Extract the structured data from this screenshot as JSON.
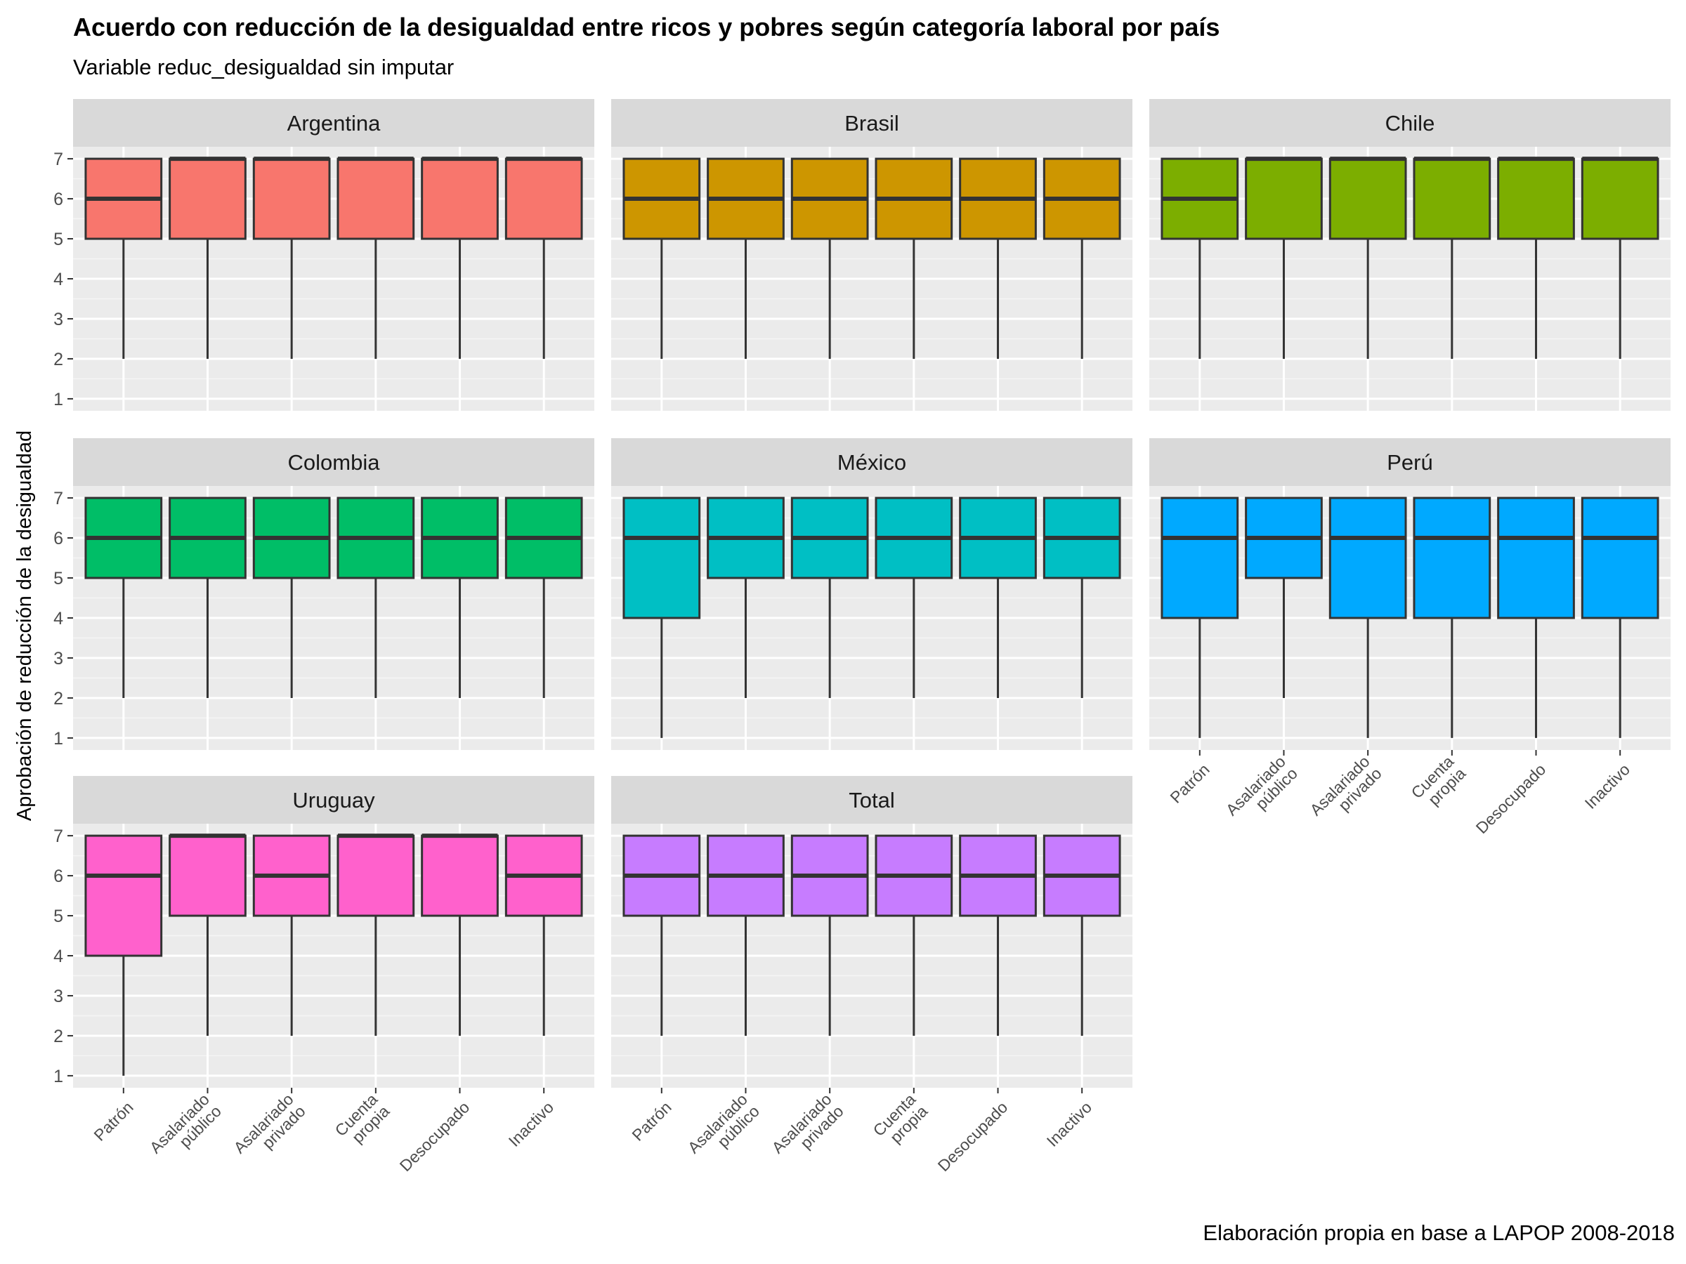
{
  "title": "Acuerdo con reducción de la desigualdad entre ricos y pobres según categoría laboral por país",
  "subtitle": "Variable reduc_desigualdad sin imputar",
  "caption": "Elaboración propia en base a LAPOP 2008-2018",
  "chart_data": {
    "type": "boxplot",
    "layout": "facet_wrap",
    "ylabel": "Aprobación de reducción de la desigualdad",
    "xlabel": "",
    "ylim": [
      0.7,
      7.3
    ],
    "yticks": [
      1,
      2,
      3,
      4,
      5,
      6,
      7
    ],
    "grid": true,
    "categories": [
      "Patrón",
      "Asalariado\npúblico",
      "Asalariado\nprivado",
      "Cuenta\npropia",
      "Desocupado",
      "Inactivo"
    ],
    "facets": [
      {
        "name": "Argentina",
        "color": "#F8766D",
        "boxes": [
          {
            "min": 2,
            "q1": 5,
            "median": 6,
            "q3": 7,
            "max": 7
          },
          {
            "min": 2,
            "q1": 5,
            "median": 7,
            "q3": 7,
            "max": 7
          },
          {
            "min": 2,
            "q1": 5,
            "median": 7,
            "q3": 7,
            "max": 7
          },
          {
            "min": 2,
            "q1": 5,
            "median": 7,
            "q3": 7,
            "max": 7
          },
          {
            "min": 2,
            "q1": 5,
            "median": 7,
            "q3": 7,
            "max": 7
          },
          {
            "min": 2,
            "q1": 5,
            "median": 7,
            "q3": 7,
            "max": 7
          }
        ]
      },
      {
        "name": "Brasil",
        "color": "#CD9600",
        "boxes": [
          {
            "min": 2,
            "q1": 5,
            "median": 6,
            "q3": 7,
            "max": 7
          },
          {
            "min": 2,
            "q1": 5,
            "median": 6,
            "q3": 7,
            "max": 7
          },
          {
            "min": 2,
            "q1": 5,
            "median": 6,
            "q3": 7,
            "max": 7
          },
          {
            "min": 2,
            "q1": 5,
            "median": 6,
            "q3": 7,
            "max": 7
          },
          {
            "min": 2,
            "q1": 5,
            "median": 6,
            "q3": 7,
            "max": 7
          },
          {
            "min": 2,
            "q1": 5,
            "median": 6,
            "q3": 7,
            "max": 7
          }
        ]
      },
      {
        "name": "Chile",
        "color": "#7CAE00",
        "boxes": [
          {
            "min": 2,
            "q1": 5,
            "median": 6,
            "q3": 7,
            "max": 7
          },
          {
            "min": 2,
            "q1": 5,
            "median": 7,
            "q3": 7,
            "max": 7
          },
          {
            "min": 2,
            "q1": 5,
            "median": 7,
            "q3": 7,
            "max": 7
          },
          {
            "min": 2,
            "q1": 5,
            "median": 7,
            "q3": 7,
            "max": 7
          },
          {
            "min": 2,
            "q1": 5,
            "median": 7,
            "q3": 7,
            "max": 7
          },
          {
            "min": 2,
            "q1": 5,
            "median": 7,
            "q3": 7,
            "max": 7
          }
        ]
      },
      {
        "name": "Colombia",
        "color": "#00BE67",
        "boxes": [
          {
            "min": 2,
            "q1": 5,
            "median": 6,
            "q3": 7,
            "max": 7
          },
          {
            "min": 2,
            "q1": 5,
            "median": 6,
            "q3": 7,
            "max": 7
          },
          {
            "min": 2,
            "q1": 5,
            "median": 6,
            "q3": 7,
            "max": 7
          },
          {
            "min": 2,
            "q1": 5,
            "median": 6,
            "q3": 7,
            "max": 7
          },
          {
            "min": 2,
            "q1": 5,
            "median": 6,
            "q3": 7,
            "max": 7
          },
          {
            "min": 2,
            "q1": 5,
            "median": 6,
            "q3": 7,
            "max": 7
          }
        ]
      },
      {
        "name": "México",
        "color": "#00BFC4",
        "boxes": [
          {
            "min": 1,
            "q1": 4,
            "median": 6,
            "q3": 7,
            "max": 7
          },
          {
            "min": 2,
            "q1": 5,
            "median": 6,
            "q3": 7,
            "max": 7
          },
          {
            "min": 2,
            "q1": 5,
            "median": 6,
            "q3": 7,
            "max": 7
          },
          {
            "min": 2,
            "q1": 5,
            "median": 6,
            "q3": 7,
            "max": 7
          },
          {
            "min": 2,
            "q1": 5,
            "median": 6,
            "q3": 7,
            "max": 7
          },
          {
            "min": 2,
            "q1": 5,
            "median": 6,
            "q3": 7,
            "max": 7
          }
        ]
      },
      {
        "name": "Perú",
        "color": "#00A9FF",
        "boxes": [
          {
            "min": 1,
            "q1": 4,
            "median": 6,
            "q3": 7,
            "max": 7
          },
          {
            "min": 2,
            "q1": 5,
            "median": 6,
            "q3": 7,
            "max": 7
          },
          {
            "min": 1,
            "q1": 4,
            "median": 6,
            "q3": 7,
            "max": 7
          },
          {
            "min": 1,
            "q1": 4,
            "median": 6,
            "q3": 7,
            "max": 7
          },
          {
            "min": 1,
            "q1": 4,
            "median": 6,
            "q3": 7,
            "max": 7
          },
          {
            "min": 1,
            "q1": 4,
            "median": 6,
            "q3": 7,
            "max": 7
          }
        ]
      },
      {
        "name": "Uruguay",
        "color": "#FF61CC",
        "boxes": [
          {
            "min": 1,
            "q1": 4,
            "median": 6,
            "q3": 7,
            "max": 7
          },
          {
            "min": 2,
            "q1": 5,
            "median": 7,
            "q3": 7,
            "max": 7
          },
          {
            "min": 2,
            "q1": 5,
            "median": 6,
            "q3": 7,
            "max": 7
          },
          {
            "min": 2,
            "q1": 5,
            "median": 7,
            "q3": 7,
            "max": 7
          },
          {
            "min": 2,
            "q1": 5,
            "median": 7,
            "q3": 7,
            "max": 7
          },
          {
            "min": 2,
            "q1": 5,
            "median": 6,
            "q3": 7,
            "max": 7
          }
        ]
      },
      {
        "name": "Total",
        "color": "#C77CFF",
        "boxes": [
          {
            "min": 2,
            "q1": 5,
            "median": 6,
            "q3": 7,
            "max": 7
          },
          {
            "min": 2,
            "q1": 5,
            "median": 6,
            "q3": 7,
            "max": 7
          },
          {
            "min": 2,
            "q1": 5,
            "median": 6,
            "q3": 7,
            "max": 7
          },
          {
            "min": 2,
            "q1": 5,
            "median": 6,
            "q3": 7,
            "max": 7
          },
          {
            "min": 2,
            "q1": 5,
            "median": 6,
            "q3": 7,
            "max": 7
          },
          {
            "min": 2,
            "q1": 5,
            "median": 6,
            "q3": 7,
            "max": 7
          }
        ]
      }
    ]
  }
}
